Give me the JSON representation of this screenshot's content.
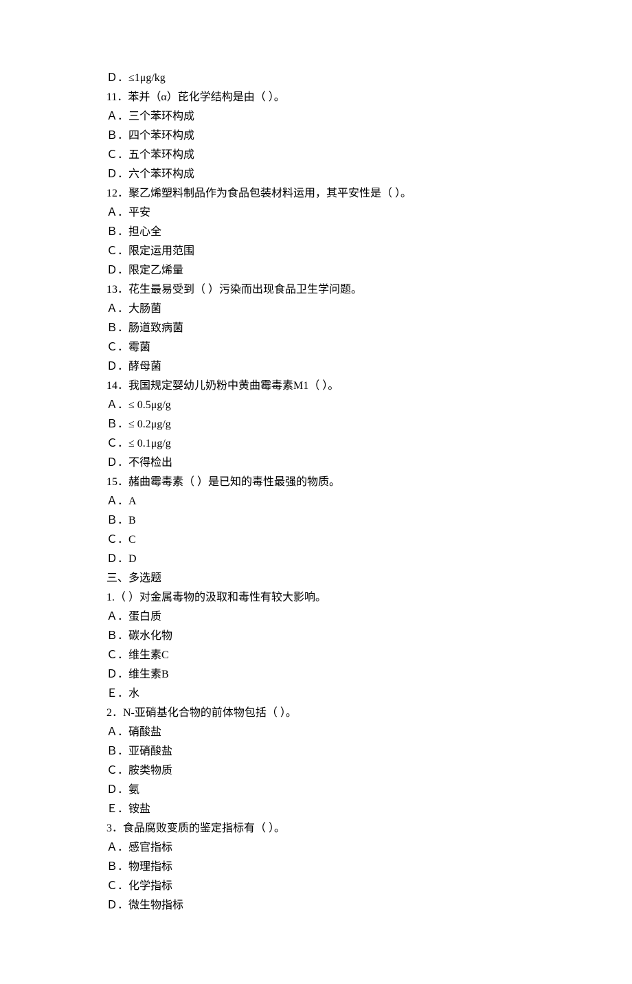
{
  "lines": [
    "Ｄ．≤1μg/kg",
    "11．苯并（α）芘化学结构是由（ ）。",
    "Ａ．三个苯环构成",
    "Ｂ．四个苯环构成",
    "Ｃ．五个苯环构成",
    "Ｄ．六个苯环构成",
    "12．聚乙烯塑料制品作为食品包装材料运用，其平安性是（ ）。",
    "Ａ．平安",
    "Ｂ．担心全",
    "Ｃ．限定运用范围",
    "Ｄ．限定乙烯量",
    "13．花生最易受到（ ）污染而出现食品卫生学问题。",
    "Ａ．大肠菌",
    "Ｂ．肠道致病菌",
    "Ｃ．霉菌",
    "Ｄ．酵母菌",
    "14．我国规定婴幼儿奶粉中黄曲霉毒素M1（ ）。",
    "Ａ．≤ 0.5μg/g",
    "Ｂ．≤ 0.2μg/g",
    "Ｃ．≤ 0.1μg/g",
    "Ｄ．不得检出",
    "15．赭曲霉毒素（ ）是已知的毒性最强的物质。",
    "Ａ．A",
    "Ｂ．B",
    "Ｃ．C",
    "Ｄ．D",
    "三、多选题",
    "1.（ ）对金属毒物的汲取和毒性有较大影响。",
    "Ａ．蛋白质",
    "Ｂ．碳水化物",
    "Ｃ．维生素C",
    "Ｄ．维生素B",
    "Ｅ．水",
    "2．N-亚硝基化合物的前体物包括（ ）。",
    "Ａ．硝酸盐",
    "Ｂ．亚硝酸盐",
    "Ｃ．胺类物质",
    "Ｄ．氨",
    "Ｅ．铵盐",
    "3．食品腐败变质的鉴定指标有（ ）。",
    "Ａ．感官指标",
    "Ｂ．物理指标",
    "Ｃ．化学指标",
    "Ｄ．微生物指标"
  ]
}
